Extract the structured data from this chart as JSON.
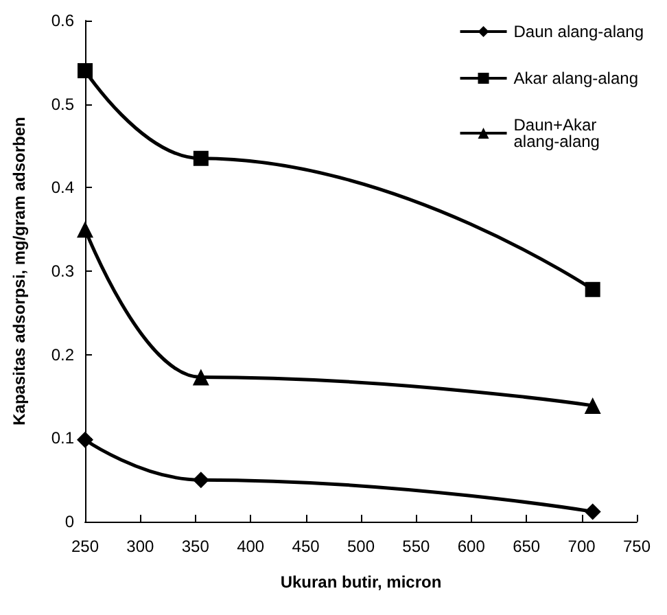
{
  "chart_data": {
    "type": "line",
    "xlabel": "Ukuran butir, micron",
    "ylabel": "Kapasitas adsorpsi, mg/gram adsorben",
    "x": [
      250,
      355,
      710
    ],
    "series": [
      {
        "name": "Daun alang-alang",
        "color": "#000000",
        "marker": "diamond",
        "values": [
          0.098,
          0.05,
          0.012
        ]
      },
      {
        "name": "Akar alang-alang",
        "color": "#000000",
        "marker": "square",
        "values": [
          0.54,
          0.435,
          0.278
        ]
      },
      {
        "name": "Daun+Akar alang-alang",
        "color": "#000000",
        "marker": "triangle",
        "values": [
          0.35,
          0.173,
          0.139
        ]
      }
    ],
    "xlim": [
      250,
      750
    ],
    "xticks": [
      250,
      300,
      350,
      400,
      450,
      500,
      550,
      600,
      650,
      700,
      750
    ],
    "ylim": [
      0,
      0.6
    ],
    "yticks": [
      0,
      0.1,
      0.2,
      0.3,
      0.4,
      0.5,
      0.6
    ],
    "grid": false,
    "legend": "top right",
    "line_style": "solid"
  }
}
